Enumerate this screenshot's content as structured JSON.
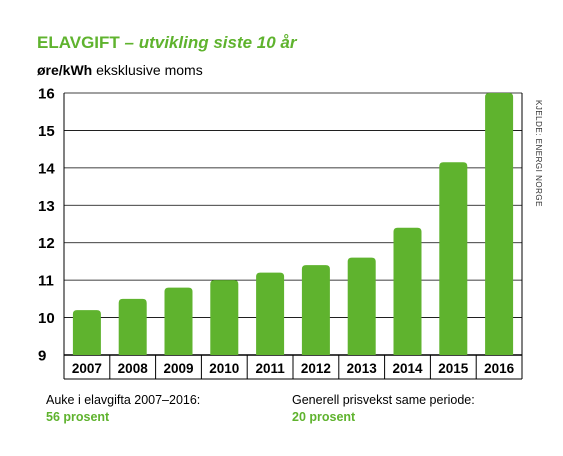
{
  "title": {
    "main": "ELAVGIFT",
    "dash": " – ",
    "sub": "utvikling siste 10 år"
  },
  "unit": {
    "bold": "øre/kWh",
    "rest": " eksklusive moms"
  },
  "source": "KJELDE: ENERGI NORGE",
  "notes": {
    "left_label": "Auke i elavgifta 2007–2016:",
    "left_value": "56 prosent",
    "right_label": "Generell prisvekst same periode:",
    "right_value": "20 prosent"
  },
  "colors": {
    "bar": "#5fb32e",
    "title": "#5fb32e",
    "grid": "#000000"
  },
  "chart_data": {
    "type": "bar",
    "categories": [
      "2007",
      "2008",
      "2009",
      "2010",
      "2011",
      "2012",
      "2013",
      "2014",
      "2015",
      "2016"
    ],
    "values": [
      10.2,
      10.5,
      10.8,
      11.0,
      11.2,
      11.4,
      11.6,
      12.4,
      14.15,
      16.0
    ],
    "yticks": [
      9,
      10,
      11,
      12,
      13,
      14,
      15,
      16
    ],
    "ylim": [
      9,
      16
    ],
    "grid": true,
    "title": "ELAVGIFT – utvikling siste 10 år",
    "ylabel": "øre/kWh eksklusive moms",
    "xlabel": ""
  }
}
